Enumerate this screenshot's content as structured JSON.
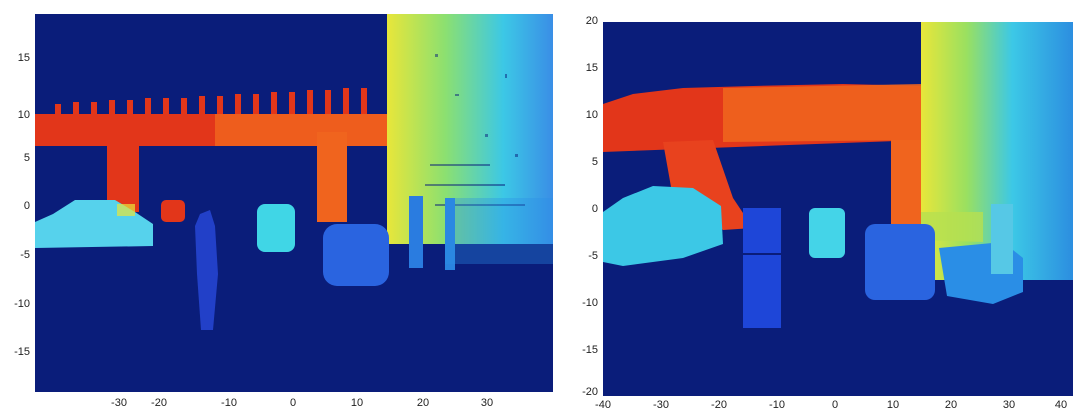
{
  "left_panel": {
    "y_ticks": [
      "15",
      "10",
      "5",
      "0",
      "-5",
      "-10",
      "-15"
    ],
    "x_ticks": [
      "-30",
      "-20",
      "-10",
      "0",
      "10",
      "20",
      "30"
    ]
  },
  "right_panel": {
    "y_ticks": [
      "20",
      "15",
      "10",
      "5",
      "0",
      "-5",
      "-10",
      "-15",
      "-20"
    ],
    "x_ticks": [
      "-40",
      "-30",
      "-20",
      "-10",
      "0",
      "10",
      "20",
      "30",
      "40"
    ]
  },
  "colors": {
    "background": "#0a1d7a",
    "far_red": "#e2361a",
    "mid_orange": "#f0641e",
    "yellow": "#e8e63a",
    "cyan": "#3cc8e6",
    "blue_near": "#2a64e0"
  }
}
